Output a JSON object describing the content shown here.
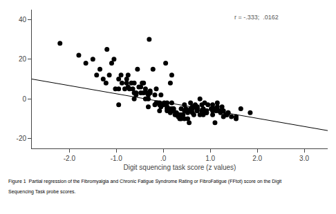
{
  "chart_data": {
    "type": "scatter",
    "title": "",
    "xlabel": "Digit squencing task score (z values)",
    "ylabel": "",
    "annotations": [
      "r = -.333;  .0162"
    ],
    "caption": [
      "Figure 1  Partial regression of the Fibromyalgia and Chronic Fatigue Syndrome Rating or FibroFatigue (FFtot) score on the Digit",
      "Sequencing Task probe scores."
    ],
    "xlim": [
      -2.8,
      3.5
    ],
    "ylim": [
      -25,
      45
    ],
    "xticks": [
      {
        "value": -2.0,
        "label": "-2.0"
      },
      {
        "value": -1.0,
        "label": "-1.0"
      },
      {
        "value": 0.0,
        "label": ".0"
      },
      {
        "value": 1.0,
        "label": "1.0"
      },
      {
        "value": 2.0,
        "label": "2.0"
      },
      {
        "value": 3.0,
        "label": "3.0"
      }
    ],
    "yticks": [
      -20,
      0,
      20,
      40
    ],
    "grid": false,
    "series": [
      {
        "type": "scatter",
        "marker": "circle",
        "color": "#000000",
        "x": [
          0.21,
          -0.05,
          0.15,
          -0.08,
          -1.05,
          -0.55,
          -0.78,
          -1.2,
          0.85,
          1.1,
          -0.3,
          0.05,
          0.18,
          -0.65,
          -0.95,
          -0.42,
          0.35,
          0.62,
          0.78,
          1.35,
          -1.8,
          -0.9,
          -0.15,
          0.08,
          0.32,
          -0.22,
          0.55,
          0.72,
          1.05,
          1.55,
          -0.45,
          -0.28,
          0.12,
          0.38,
          -0.75,
          0.65,
          0.88,
          1.2,
          1.45,
          1.65,
          -1.1,
          -0.68,
          -0.35,
          0.02,
          0.22,
          0.42,
          0.68,
          0.92,
          1.15,
          1.38,
          -0.82,
          -0.58,
          -0.18,
          0.08,
          0.28,
          0.48,
          0.58,
          0.78,
          1.08,
          1.28,
          -1.35,
          -0.88,
          -0.48,
          -0.12,
          0.12,
          0.32,
          0.52,
          0.72,
          0.95,
          1.18,
          -0.95,
          -0.72,
          -0.32,
          0.0,
          0.18,
          0.35,
          0.58,
          0.82,
          1.05,
          1.25,
          -0.62,
          -0.42,
          -0.15,
          0.08,
          0.28,
          0.45,
          0.62,
          0.82,
          1.02,
          1.22,
          -0.52,
          -0.32,
          -0.08,
          0.12,
          0.32,
          0.52,
          0.72,
          0.92,
          1.15,
          1.38,
          -1.5,
          -1.15,
          -0.75,
          -0.38,
          -0.05,
          0.15,
          0.38,
          0.62,
          0.88,
          1.12,
          -2.2,
          -1.65,
          -1.28,
          -0.95,
          -0.62,
          -0.32,
          -0.08,
          0.18,
          0.45,
          0.72,
          0.25,
          0.45,
          0.62,
          0.85,
          1.05,
          1.28,
          1.55,
          1.85,
          -0.18,
          -0.38,
          0.08,
          0.22,
          0.38,
          0.55,
          0.72,
          0.92,
          1.12,
          1.35,
          -0.58,
          -0.78,
          -0.02,
          0.12,
          0.28,
          0.48,
          0.68,
          0.88,
          1.08,
          1.32,
          -0.28,
          -0.48,
          0.15,
          0.32,
          0.52,
          0.72,
          0.92,
          -1.02,
          -1.22,
          -1.42,
          0.18,
          -0.62
        ],
        "values": [
          -5.0,
          2.0,
          8.0,
          -2.0,
          20.0,
          15.0,
          10.0,
          25.0,
          -8.0,
          -12.0,
          30.0,
          18.0,
          12.0,
          5.0,
          -3.0,
          8.0,
          -10.0,
          -5.0,
          0.0,
          -8.0,
          22.0,
          12.0,
          5.0,
          -2.0,
          -8.0,
          15.0,
          -12.0,
          -6.0,
          -3.0,
          -10.0,
          8.0,
          3.0,
          -5.0,
          -10.0,
          12.0,
          -8.0,
          -2.0,
          -6.0,
          -9.0,
          -5.0,
          18.0,
          8.0,
          3.0,
          -2.0,
          -5.0,
          -8.0,
          -3.0,
          -6.0,
          -2.0,
          -7.0,
          5.0,
          2.0,
          -3.0,
          -6.0,
          -8.0,
          -5.0,
          -2.0,
          -8.0,
          -5.0,
          -9.0,
          15.0,
          8.0,
          3.0,
          -2.0,
          -5.0,
          -8.0,
          -10.0,
          -5.0,
          -3.0,
          -6.0,
          10.0,
          5.0,
          0.0,
          -3.0,
          -6.0,
          -8.0,
          -5.0,
          -3.0,
          -6.0,
          -4.0,
          8.0,
          3.0,
          -2.0,
          -5.0,
          -8.0,
          -6.0,
          -4.0,
          -6.0,
          -5.0,
          -7.0,
          6.0,
          2.0,
          -3.0,
          -6.0,
          -9.0,
          -7.0,
          -4.0,
          -6.0,
          -4.0,
          -7.0,
          20.0,
          12.0,
          6.0,
          0.0,
          -4.0,
          -7.0,
          -5.0,
          -4.0,
          -6.0,
          -5.0,
          28.0,
          18.0,
          10.0,
          5.0,
          0.0,
          -4.0,
          -6.0,
          -5.0,
          -3.0,
          -6.0,
          -8.0,
          -10.0,
          -7.0,
          -5.0,
          -8.0,
          -6.0,
          -9.0,
          -7.0,
          2.0,
          5.0,
          -4.0,
          -6.0,
          -8.0,
          -6.0,
          -4.0,
          -7.0,
          -6.0,
          -8.0,
          3.0,
          8.0,
          -3.0,
          -5.0,
          -7.0,
          -6.0,
          -4.0,
          -6.0,
          -5.0,
          -8.0,
          4.0,
          6.0,
          -6.0,
          -8.0,
          -6.0,
          -5.0,
          -7.0,
          5.0,
          8.0,
          12.0,
          -2.0,
          3.0
        ]
      },
      {
        "type": "line",
        "line_style": "solid",
        "color": "#000000",
        "x": [
          -2.8,
          3.5
        ],
        "values": [
          10.0,
          -16.0
        ]
      }
    ]
  }
}
